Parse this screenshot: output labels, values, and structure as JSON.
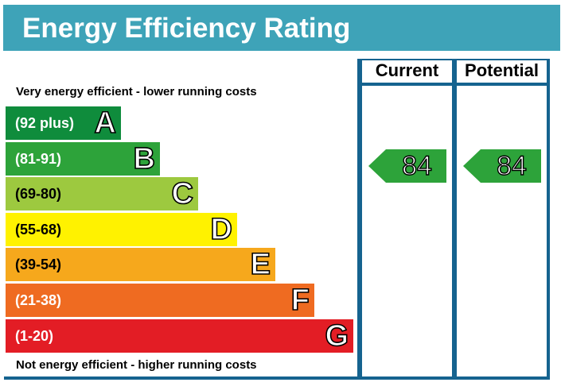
{
  "title": "Energy Efficiency Rating",
  "columns": {
    "current": "Current",
    "potential": "Potential"
  },
  "notes": {
    "top": "Very energy efficient - lower running costs",
    "bottom": "Not energy efficient - higher running costs"
  },
  "chart_data": {
    "type": "bar",
    "title": "Energy Efficiency Rating",
    "categories": [
      "A",
      "B",
      "C",
      "D",
      "E",
      "F",
      "G"
    ],
    "ranges": [
      "(92 plus)",
      "(81-91)",
      "(69-80)",
      "(55-68)",
      "(39-54)",
      "(21-38)",
      "(1-20)"
    ],
    "colors": [
      "#0f8c3c",
      "#2da33a",
      "#9dc93f",
      "#fff200",
      "#f6a81c",
      "#ef6b21",
      "#e31d25"
    ],
    "current": {
      "value": 84,
      "band": "B"
    },
    "potential": {
      "value": 84,
      "band": "B"
    }
  },
  "colors": {
    "header": "#3ea3b8",
    "frame": "#15638f",
    "ratingArrow": "#2da33a"
  }
}
